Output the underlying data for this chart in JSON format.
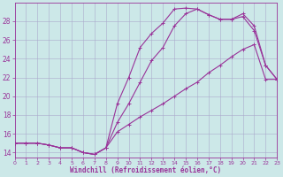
{
  "xlabel": "Windchill (Refroidissement éolien,°C)",
  "background_color": "#cce8e8",
  "grid_color": "#aaaacc",
  "line_color": "#993399",
  "xlim": [
    0,
    23
  ],
  "ylim": [
    13.5,
    30.0
  ],
  "xticks": [
    0,
    1,
    2,
    3,
    4,
    5,
    6,
    7,
    8,
    9,
    10,
    11,
    12,
    13,
    14,
    15,
    16,
    17,
    18,
    19,
    20,
    21,
    22,
    23
  ],
  "yticks": [
    14,
    16,
    18,
    20,
    22,
    24,
    26,
    28
  ],
  "curve1_x": [
    0,
    1,
    2,
    3,
    4,
    5,
    6,
    7,
    8,
    9,
    10,
    11,
    12,
    13,
    14,
    15,
    16,
    17,
    18,
    19,
    20,
    21,
    22,
    23
  ],
  "curve1_y": [
    15.0,
    15.0,
    15.0,
    14.8,
    14.5,
    14.5,
    14.0,
    13.8,
    14.5,
    19.2,
    22.0,
    25.2,
    26.7,
    27.8,
    29.3,
    29.4,
    29.3,
    28.7,
    28.2,
    28.2,
    28.8,
    27.5,
    23.3,
    21.8
  ],
  "curve2_x": [
    0,
    1,
    2,
    3,
    4,
    5,
    6,
    7,
    8,
    9,
    10,
    11,
    12,
    13,
    14,
    15,
    16,
    17,
    18,
    19,
    20,
    21,
    22,
    23
  ],
  "curve2_y": [
    15.0,
    15.0,
    15.0,
    14.8,
    14.5,
    14.5,
    14.0,
    13.8,
    14.5,
    17.2,
    19.2,
    21.5,
    23.8,
    25.2,
    27.5,
    28.8,
    29.3,
    28.7,
    28.2,
    28.2,
    28.5,
    27.0,
    23.3,
    21.8
  ],
  "curve3_x": [
    0,
    1,
    2,
    3,
    4,
    5,
    6,
    7,
    8,
    9,
    10,
    11,
    12,
    13,
    14,
    15,
    16,
    17,
    18,
    19,
    20,
    21,
    22,
    23
  ],
  "curve3_y": [
    15.0,
    15.0,
    15.0,
    14.8,
    14.5,
    14.5,
    14.0,
    13.8,
    14.5,
    16.2,
    17.0,
    17.8,
    18.5,
    19.2,
    20.0,
    20.8,
    21.5,
    22.5,
    23.3,
    24.2,
    25.0,
    25.5,
    21.8,
    21.8
  ]
}
